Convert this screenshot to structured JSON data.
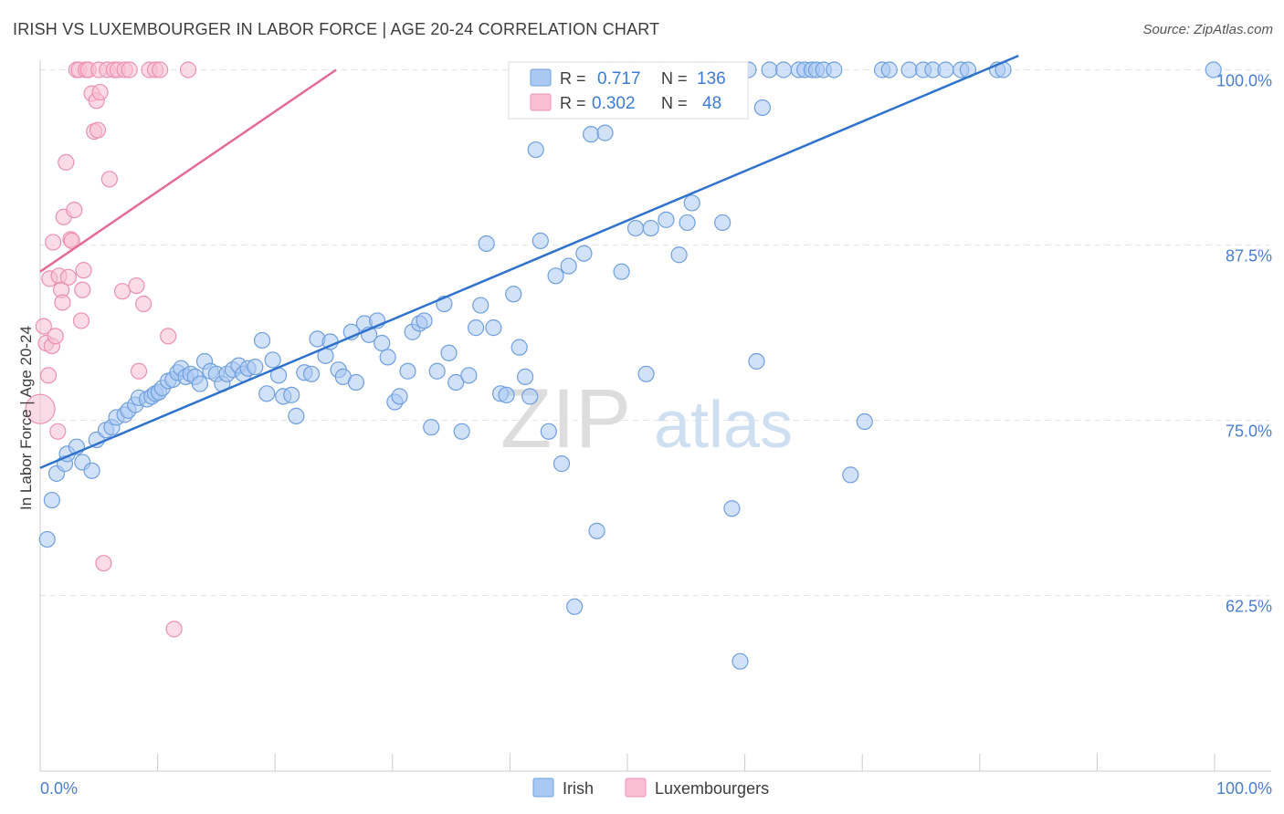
{
  "title": "IRISH VS LUXEMBOURGER IN LABOR FORCE | AGE 20-24 CORRELATION CHART",
  "source": "Source: ZipAtlas.com",
  "watermark": {
    "zip": "ZIP",
    "atlas": "atlas"
  },
  "colors": {
    "irish_fill": "#a9c9f2",
    "irish_stroke": "#6f9fdf",
    "irish_line": "#2f72cc",
    "lux_fill": "#f8c0d2",
    "lux_stroke": "#ec90af",
    "lux_line": "#e56b94",
    "grid": "#e4e4e4",
    "axis_label": "#4a7fd0",
    "value_text": "#3e7bd1"
  },
  "legend_top": {
    "rows": [
      {
        "r_label": "R =",
        "r_value": "0.717",
        "n_label": "N =",
        "n_value": "136"
      },
      {
        "r_label": "R =",
        "r_value": "0.302",
        "n_label": "N =",
        "n_value": "48"
      }
    ]
  },
  "legend_bottom": {
    "irish": "Irish",
    "lux": "Luxembourgers"
  },
  "chart_data": {
    "type": "scatter",
    "title": "IRISH VS LUXEMBOURGER IN LABOR FORCE | AGE 20-24 CORRELATION CHART",
    "xlabel": "",
    "ylabel": "In Labor Force | Age 20-24",
    "xlim": [
      0,
      100
    ],
    "ylim": [
      52,
      101
    ],
    "x_tick_labels": [
      {
        "value": 0,
        "label": "0.0%"
      },
      {
        "value": 100,
        "label": "100.0%"
      }
    ],
    "y_tick_labels": [
      {
        "value": 100,
        "label": "100.0%"
      },
      {
        "value": 87.5,
        "label": "87.5%"
      },
      {
        "value": 75,
        "label": "75.0%"
      },
      {
        "value": 62.5,
        "label": "62.5%"
      }
    ],
    "series": [
      {
        "name": "Irish",
        "r": 0.717,
        "n": 136,
        "trend": {
          "x": [
            0,
            83.3
          ],
          "y": [
            71.6,
            101.0
          ]
        },
        "points": [
          [
            0.6,
            66.5
          ],
          [
            1.0,
            69.3
          ],
          [
            1.4,
            71.2
          ],
          [
            2.1,
            71.9
          ],
          [
            2.3,
            72.6
          ],
          [
            3.1,
            73.1
          ],
          [
            3.6,
            72.0
          ],
          [
            4.4,
            71.4
          ],
          [
            4.8,
            73.6
          ],
          [
            5.6,
            74.3
          ],
          [
            6.1,
            74.5
          ],
          [
            6.5,
            75.2
          ],
          [
            7.2,
            75.4
          ],
          [
            7.5,
            75.7
          ],
          [
            8.1,
            76.1
          ],
          [
            8.4,
            76.6
          ],
          [
            9.1,
            76.5
          ],
          [
            9.5,
            76.7
          ],
          [
            9.8,
            76.9
          ],
          [
            10.1,
            77.0
          ],
          [
            10.4,
            77.3
          ],
          [
            10.9,
            77.8
          ],
          [
            11.3,
            77.9
          ],
          [
            11.7,
            78.4
          ],
          [
            12.0,
            78.7
          ],
          [
            12.4,
            78.1
          ],
          [
            12.8,
            78.3
          ],
          [
            13.2,
            78.1
          ],
          [
            13.6,
            77.6
          ],
          [
            14.0,
            79.2
          ],
          [
            14.5,
            78.5
          ],
          [
            15.0,
            78.3
          ],
          [
            15.5,
            77.6
          ],
          [
            15.9,
            78.3
          ],
          [
            16.4,
            78.6
          ],
          [
            16.9,
            78.9
          ],
          [
            17.3,
            78.3
          ],
          [
            17.7,
            78.7
          ],
          [
            18.3,
            78.8
          ],
          [
            18.9,
            80.7
          ],
          [
            19.3,
            76.9
          ],
          [
            19.8,
            79.3
          ],
          [
            20.3,
            78.2
          ],
          [
            20.7,
            76.7
          ],
          [
            21.4,
            76.8
          ],
          [
            21.8,
            75.3
          ],
          [
            22.5,
            78.4
          ],
          [
            23.1,
            78.3
          ],
          [
            23.6,
            80.8
          ],
          [
            24.3,
            79.6
          ],
          [
            24.7,
            80.6
          ],
          [
            25.4,
            78.6
          ],
          [
            25.8,
            78.1
          ],
          [
            26.5,
            81.3
          ],
          [
            26.9,
            77.7
          ],
          [
            27.6,
            81.9
          ],
          [
            28.0,
            81.1
          ],
          [
            28.7,
            82.1
          ],
          [
            29.1,
            80.5
          ],
          [
            29.6,
            79.5
          ],
          [
            30.2,
            76.3
          ],
          [
            30.6,
            76.7
          ],
          [
            31.3,
            78.5
          ],
          [
            31.7,
            81.3
          ],
          [
            32.3,
            81.9
          ],
          [
            32.7,
            82.1
          ],
          [
            33.3,
            74.5
          ],
          [
            33.8,
            78.5
          ],
          [
            34.4,
            83.3
          ],
          [
            34.8,
            79.8
          ],
          [
            35.4,
            77.7
          ],
          [
            35.9,
            74.2
          ],
          [
            36.5,
            78.2
          ],
          [
            37.1,
            81.6
          ],
          [
            37.5,
            83.2
          ],
          [
            38.0,
            87.6
          ],
          [
            38.6,
            81.6
          ],
          [
            39.2,
            76.9
          ],
          [
            39.7,
            76.8
          ],
          [
            40.3,
            84.0
          ],
          [
            40.8,
            80.2
          ],
          [
            41.3,
            78.1
          ],
          [
            41.7,
            76.7
          ],
          [
            42.2,
            94.3
          ],
          [
            42.6,
            87.8
          ],
          [
            43.3,
            74.2
          ],
          [
            43.9,
            85.3
          ],
          [
            44.4,
            71.9
          ],
          [
            45.0,
            86.0
          ],
          [
            45.5,
            61.7
          ],
          [
            46.3,
            86.9
          ],
          [
            46.9,
            95.4
          ],
          [
            47.4,
            67.1
          ],
          [
            48.1,
            95.5
          ],
          [
            48.6,
            100
          ],
          [
            49.5,
            85.6
          ],
          [
            50.2,
            100
          ],
          [
            50.7,
            88.7
          ],
          [
            51.6,
            78.3
          ],
          [
            52.0,
            88.7
          ],
          [
            52.7,
            100
          ],
          [
            53.3,
            89.3
          ],
          [
            53.8,
            97.3
          ],
          [
            54.4,
            86.8
          ],
          [
            55.1,
            89.1
          ],
          [
            55.5,
            90.5
          ],
          [
            56.0,
            100
          ],
          [
            56.5,
            100
          ],
          [
            57.3,
            100
          ],
          [
            58.1,
            89.1
          ],
          [
            58.9,
            68.7
          ],
          [
            59.6,
            57.8
          ],
          [
            60.3,
            100
          ],
          [
            61.0,
            79.2
          ],
          [
            61.5,
            97.3
          ],
          [
            62.1,
            100
          ],
          [
            63.3,
            100
          ],
          [
            64.6,
            100
          ],
          [
            65.1,
            100
          ],
          [
            65.7,
            100
          ],
          [
            66.1,
            100
          ],
          [
            66.7,
            100
          ],
          [
            67.6,
            100
          ],
          [
            69.0,
            71.1
          ],
          [
            70.2,
            74.9
          ],
          [
            71.7,
            100
          ],
          [
            72.3,
            100
          ],
          [
            74.0,
            100
          ],
          [
            75.2,
            100
          ],
          [
            76.0,
            100
          ],
          [
            77.1,
            100
          ],
          [
            78.4,
            100
          ],
          [
            79.0,
            100
          ],
          [
            81.5,
            100
          ],
          [
            82.0,
            100
          ],
          [
            99.9,
            100
          ]
        ]
      },
      {
        "name": "Luxembourgers",
        "r": 0.302,
        "n": 48,
        "trend": {
          "x": [
            0,
            25.2
          ],
          "y": [
            85.6,
            100.0
          ]
        },
        "points": [
          [
            0.0,
            75.8
          ],
          [
            0.3,
            81.7
          ],
          [
            0.5,
            80.5
          ],
          [
            0.7,
            78.2
          ],
          [
            0.8,
            85.1
          ],
          [
            1.0,
            80.3
          ],
          [
            1.1,
            87.7
          ],
          [
            1.3,
            81.0
          ],
          [
            1.5,
            74.2
          ],
          [
            1.6,
            85.3
          ],
          [
            1.8,
            84.3
          ],
          [
            1.9,
            83.4
          ],
          [
            2.0,
            89.5
          ],
          [
            2.2,
            93.4
          ],
          [
            2.4,
            85.2
          ],
          [
            2.6,
            87.9
          ],
          [
            2.7,
            87.8
          ],
          [
            2.9,
            90.0
          ],
          [
            3.1,
            100
          ],
          [
            3.3,
            100
          ],
          [
            3.5,
            82.1
          ],
          [
            3.6,
            84.3
          ],
          [
            3.7,
            85.7
          ],
          [
            3.9,
            100
          ],
          [
            4.1,
            100
          ],
          [
            4.4,
            98.3
          ],
          [
            4.6,
            95.6
          ],
          [
            4.8,
            97.8
          ],
          [
            4.9,
            95.7
          ],
          [
            5.0,
            100
          ],
          [
            5.1,
            98.4
          ],
          [
            5.4,
            64.8
          ],
          [
            5.7,
            100
          ],
          [
            5.9,
            92.2
          ],
          [
            6.3,
            100
          ],
          [
            6.6,
            100
          ],
          [
            7.0,
            84.2
          ],
          [
            7.2,
            100
          ],
          [
            7.6,
            100
          ],
          [
            8.2,
            84.6
          ],
          [
            8.4,
            78.5
          ],
          [
            8.8,
            83.3
          ],
          [
            9.3,
            100
          ],
          [
            9.8,
            100
          ],
          [
            10.2,
            100
          ],
          [
            10.9,
            81.0
          ],
          [
            11.4,
            60.1
          ],
          [
            12.6,
            100
          ]
        ]
      }
    ]
  }
}
